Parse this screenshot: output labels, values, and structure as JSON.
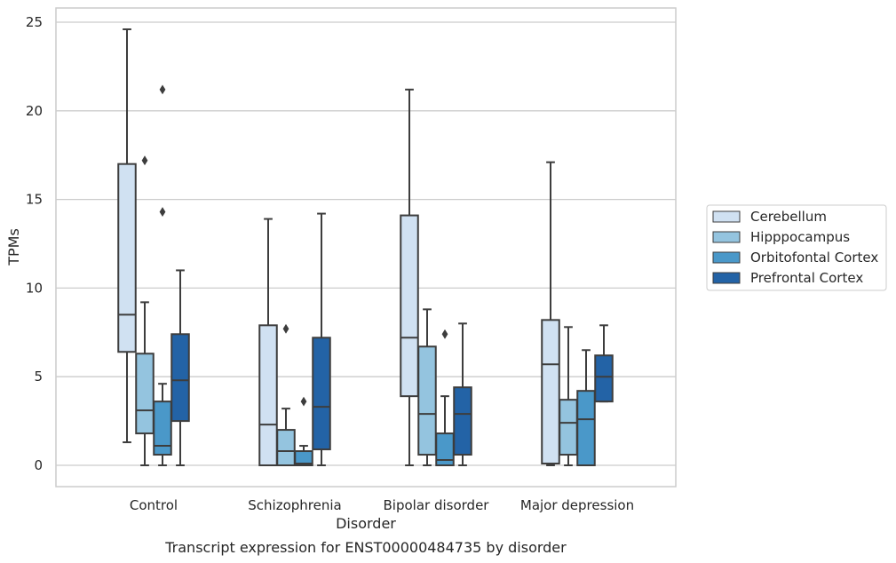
{
  "chart_data": {
    "type": "box",
    "xlabel": "Disorder",
    "ylabel": "TPMs",
    "caption": "Transcript expression for ENST00000484735 by disorder",
    "ylim": [
      -1.2,
      25.8
    ],
    "yticks": [
      0,
      5,
      10,
      15,
      20,
      25
    ],
    "grid": "horizontal",
    "legend_position": "right",
    "categories": [
      "Control",
      "Schizophrenia",
      "Bipolar disorder",
      "Major depression"
    ],
    "series": [
      {
        "name": "Cerebellum",
        "color": "#d0e1f2",
        "boxes": [
          {
            "min": 1.3,
            "q1": 6.4,
            "median": 8.5,
            "q3": 17.0,
            "max": 24.6,
            "outliers": []
          },
          {
            "min": 0.0,
            "q1": 0.0,
            "median": 2.3,
            "q3": 7.9,
            "max": 13.9,
            "outliers": []
          },
          {
            "min": 0.0,
            "q1": 3.9,
            "median": 7.2,
            "q3": 14.1,
            "max": 21.2,
            "outliers": []
          },
          {
            "min": 0.0,
            "q1": 0.1,
            "median": 5.7,
            "q3": 8.2,
            "max": 17.1,
            "outliers": []
          }
        ]
      },
      {
        "name": "Hipppocampus",
        "color": "#94c4df",
        "boxes": [
          {
            "min": 0.0,
            "q1": 1.8,
            "median": 3.1,
            "q3": 6.3,
            "max": 9.2,
            "outliers": [
              17.2
            ]
          },
          {
            "min": 0.0,
            "q1": 0.0,
            "median": 0.8,
            "q3": 2.0,
            "max": 3.2,
            "outliers": [
              7.7
            ]
          },
          {
            "min": 0.0,
            "q1": 0.6,
            "median": 2.9,
            "q3": 6.7,
            "max": 8.8,
            "outliers": []
          },
          {
            "min": 0.0,
            "q1": 0.6,
            "median": 2.4,
            "q3": 3.7,
            "max": 7.8,
            "outliers": []
          }
        ]
      },
      {
        "name": "Orbitofontal Cortex",
        "color": "#4a98c9",
        "boxes": [
          {
            "min": 0.0,
            "q1": 0.6,
            "median": 1.1,
            "q3": 3.6,
            "max": 4.6,
            "outliers": [
              21.2,
              14.3
            ]
          },
          {
            "min": 0.0,
            "q1": 0.0,
            "median": 0.1,
            "q3": 0.8,
            "max": 1.1,
            "outliers": [
              3.6
            ]
          },
          {
            "min": 0.0,
            "q1": 0.0,
            "median": 0.3,
            "q3": 1.8,
            "max": 3.9,
            "outliers": [
              7.4
            ]
          },
          {
            "min": 0.0,
            "q1": 0.0,
            "median": 2.6,
            "q3": 4.2,
            "max": 6.5,
            "outliers": []
          }
        ]
      },
      {
        "name": "Prefrontal Cortex",
        "color": "#2363a6",
        "boxes": [
          {
            "min": 0.0,
            "q1": 2.5,
            "median": 4.8,
            "q3": 7.4,
            "max": 11.0,
            "outliers": []
          },
          {
            "min": 0.0,
            "q1": 0.9,
            "median": 3.3,
            "q3": 7.2,
            "max": 14.2,
            "outliers": []
          },
          {
            "min": 0.0,
            "q1": 0.6,
            "median": 2.9,
            "q3": 4.4,
            "max": 8.0,
            "outliers": []
          },
          {
            "min": 3.6,
            "q1": 3.6,
            "median": 5.0,
            "q3": 6.2,
            "max": 7.9,
            "outliers": []
          }
        ]
      }
    ]
  }
}
